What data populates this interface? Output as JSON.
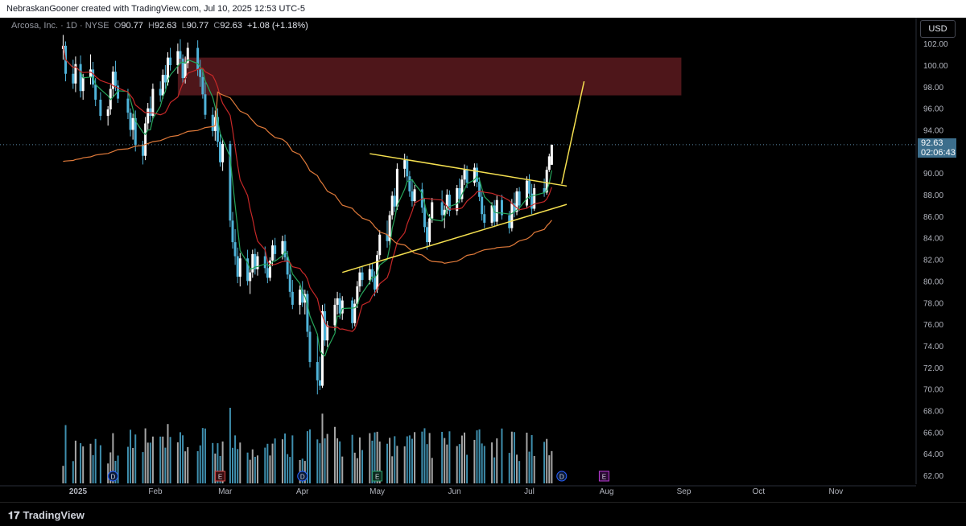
{
  "header": {
    "caption": "NebraskanGooner created with TradingView.com, Jul 10, 2025 12:53 UTC-5"
  },
  "legend": {
    "symbol": "Arcosa, Inc. · 1D · NYSE",
    "open_label": "O",
    "open": "90.77",
    "high_label": "H",
    "high": "92.63",
    "low_label": "L",
    "low": "90.77",
    "close_label": "C",
    "close": "92.63",
    "change": "+1.08 (+1.18%)"
  },
  "currency": "USD",
  "last_price": {
    "value": "92.63",
    "countdown": "02:06:43"
  },
  "footer": {
    "brand": "TradingView"
  },
  "colors": {
    "up": "#ffffff",
    "down": "#4fb3d9",
    "ma_fast": "#26a65b",
    "ma_mid": "#c62828",
    "ma_slow": "#e07a3a",
    "resistance_zone": "#5c1a1f",
    "trendline": "#f5e050"
  },
  "chart_data": {
    "type": "candlestick",
    "y_axis": {
      "ticks": [
        "102.00",
        "100.00",
        "98.00",
        "96.00",
        "94.00",
        "92.00",
        "90.00",
        "88.00",
        "86.00",
        "84.00",
        "82.00",
        "80.00",
        "78.00",
        "76.00",
        "74.00",
        "72.00",
        "70.00",
        "68.00",
        "66.00",
        "64.00",
        "62.00"
      ],
      "range": [
        61,
        104
      ]
    },
    "x_axis": {
      "ticks": [
        "2025",
        "Feb",
        "Mar",
        "Apr",
        "May",
        "Jun",
        "Jul",
        "Aug",
        "Sep",
        "Oct",
        "Nov"
      ]
    },
    "event_markers": [
      {
        "label": "D",
        "date": "2025-01-15",
        "kind": "dividend"
      },
      {
        "label": "E",
        "date": "2025-02-27",
        "kind": "earnings"
      },
      {
        "label": "D",
        "date": "2025-04-01",
        "kind": "dividend"
      },
      {
        "label": "E",
        "date": "2025-05-01",
        "kind": "earnings"
      },
      {
        "label": "D",
        "date": "2025-07-14",
        "kind": "dividend"
      },
      {
        "label": "E",
        "date": "2025-07-31",
        "kind": "earnings"
      }
    ],
    "resistance_zone": {
      "from_date": "2025-02-10",
      "to_date": "2025-08-31",
      "low": 97.2,
      "high": 100.7
    },
    "trendlines": [
      {
        "from": [
          "2025-04-28",
          91.8
        ],
        "to": [
          "2025-07-16",
          88.8
        ]
      },
      {
        "from": [
          "2025-04-17",
          80.8
        ],
        "to": [
          "2025-07-16",
          87.1
        ]
      }
    ],
    "projection": {
      "points": [
        [
          "2025-07-14",
          89.0
        ],
        [
          "2025-07-23",
          98.5
        ]
      ]
    },
    "candles": [
      [
        "2024-12-26",
        101.5,
        102.8,
        100.5,
        101.8
      ],
      [
        "2024-12-27",
        101.8,
        102.2,
        98.5,
        99.2
      ],
      [
        "2024-12-30",
        99.2,
        100.5,
        97.8,
        98.3
      ],
      [
        "2024-12-31",
        98.3,
        100.8,
        97.5,
        100.1
      ],
      [
        "2025-01-02",
        100.1,
        100.9,
        97.0,
        97.6
      ],
      [
        "2025-01-03",
        97.6,
        99.2,
        96.8,
        98.9
      ],
      [
        "2025-01-06",
        98.9,
        101.0,
        98.2,
        99.6
      ],
      [
        "2025-01-07",
        99.6,
        100.3,
        97.9,
        98.2
      ],
      [
        "2025-01-08",
        98.2,
        98.8,
        96.2,
        96.8
      ],
      [
        "2025-01-10",
        96.8,
        97.5,
        94.9,
        95.3
      ],
      [
        "2025-01-13",
        95.3,
        96.2,
        94.4,
        95.9
      ],
      [
        "2025-01-14",
        95.9,
        98.2,
        95.4,
        97.8
      ],
      [
        "2025-01-15",
        97.8,
        99.9,
        97.1,
        99.4
      ],
      [
        "2025-01-16",
        99.4,
        100.4,
        97.6,
        98.1
      ],
      [
        "2025-01-17",
        98.1,
        98.6,
        96.5,
        96.9
      ],
      [
        "2025-01-21",
        96.9,
        97.8,
        95.0,
        95.6
      ],
      [
        "2025-01-22",
        95.6,
        96.0,
        93.4,
        94.0
      ],
      [
        "2025-01-23",
        94.0,
        95.5,
        93.1,
        95.1
      ],
      [
        "2025-01-24",
        95.1,
        95.8,
        92.0,
        92.6
      ],
      [
        "2025-01-27",
        92.6,
        93.0,
        90.8,
        91.6
      ],
      [
        "2025-01-28",
        91.6,
        95.2,
        91.2,
        94.6
      ],
      [
        "2025-01-29",
        94.6,
        96.5,
        94.0,
        96.0
      ],
      [
        "2025-01-30",
        96.0,
        97.1,
        94.7,
        95.3
      ],
      [
        "2025-01-31",
        95.3,
        98.3,
        95.0,
        97.8
      ],
      [
        "2025-02-03",
        97.8,
        98.5,
        96.6,
        97.2
      ],
      [
        "2025-02-04",
        97.2,
        99.6,
        96.9,
        99.1
      ],
      [
        "2025-02-05",
        99.1,
        100.0,
        97.8,
        98.4
      ],
      [
        "2025-02-06",
        98.4,
        101.2,
        98.1,
        100.7
      ],
      [
        "2025-02-07",
        100.7,
        101.6,
        99.5,
        100.0
      ],
      [
        "2025-02-10",
        100.0,
        102.0,
        99.2,
        101.3
      ],
      [
        "2025-02-11",
        101.3,
        102.4,
        100.1,
        100.6
      ],
      [
        "2025-02-12",
        100.6,
        101.0,
        98.2,
        98.8
      ],
      [
        "2025-02-13",
        98.8,
        100.8,
        98.3,
        100.2
      ],
      [
        "2025-02-14",
        100.2,
        102.1,
        99.7,
        101.6
      ],
      [
        "2025-02-18",
        101.6,
        102.3,
        99.0,
        99.6
      ],
      [
        "2025-02-19",
        99.6,
        100.5,
        98.0,
        98.9
      ],
      [
        "2025-02-20",
        98.9,
        99.6,
        96.9,
        97.3
      ],
      [
        "2025-02-21",
        97.3,
        98.4,
        95.0,
        95.4
      ],
      [
        "2025-02-24",
        95.4,
        96.1,
        93.4,
        93.9
      ],
      [
        "2025-02-25",
        93.9,
        95.8,
        93.0,
        95.2
      ],
      [
        "2025-02-26",
        95.2,
        96.0,
        92.4,
        92.9
      ],
      [
        "2025-02-27",
        92.9,
        93.6,
        90.6,
        91.0
      ],
      [
        "2025-02-28",
        91.0,
        93.1,
        90.2,
        92.7
      ],
      [
        "2025-03-03",
        92.7,
        93.0,
        85.0,
        85.6
      ],
      [
        "2025-03-04",
        85.6,
        86.4,
        83.0,
        83.6
      ],
      [
        "2025-03-05",
        83.6,
        84.8,
        81.5,
        82.3
      ],
      [
        "2025-03-06",
        82.3,
        83.1,
        79.8,
        80.4
      ],
      [
        "2025-03-07",
        80.4,
        82.6,
        79.5,
        82.1
      ],
      [
        "2025-03-10",
        82.1,
        82.9,
        79.6,
        80.0
      ],
      [
        "2025-03-11",
        80.0,
        81.2,
        78.8,
        80.8
      ],
      [
        "2025-03-12",
        80.8,
        82.9,
        80.3,
        82.5
      ],
      [
        "2025-03-13",
        82.5,
        83.0,
        80.6,
        81.1
      ],
      [
        "2025-03-14",
        81.1,
        82.7,
        80.5,
        82.3
      ],
      [
        "2025-03-17",
        82.3,
        83.2,
        80.7,
        81.2
      ],
      [
        "2025-03-18",
        81.2,
        81.8,
        79.8,
        80.3
      ],
      [
        "2025-03-19",
        80.3,
        82.2,
        80.0,
        81.9
      ],
      [
        "2025-03-20",
        81.9,
        83.8,
        81.4,
        83.3
      ],
      [
        "2025-03-21",
        83.3,
        84.0,
        81.9,
        82.5
      ],
      [
        "2025-03-24",
        82.5,
        84.2,
        82.0,
        83.7
      ],
      [
        "2025-03-25",
        83.7,
        84.3,
        81.8,
        82.2
      ],
      [
        "2025-03-26",
        82.2,
        82.8,
        80.2,
        80.6
      ],
      [
        "2025-03-27",
        80.6,
        81.5,
        78.5,
        79.0
      ],
      [
        "2025-03-28",
        79.0,
        80.1,
        77.4,
        77.8
      ],
      [
        "2025-03-31",
        77.8,
        79.6,
        76.9,
        79.2
      ],
      [
        "2025-04-01",
        79.2,
        80.0,
        77.6,
        78.0
      ],
      [
        "2025-04-02",
        78.0,
        79.2,
        76.9,
        78.8
      ],
      [
        "2025-04-03",
        78.8,
        79.1,
        74.8,
        75.3
      ],
      [
        "2025-04-04",
        75.3,
        75.9,
        72.0,
        72.5
      ],
      [
        "2025-04-07",
        72.5,
        74.9,
        69.5,
        70.8
      ],
      [
        "2025-04-08",
        70.8,
        73.0,
        69.9,
        70.3
      ],
      [
        "2025-04-09",
        70.3,
        77.8,
        70.1,
        77.2
      ],
      [
        "2025-04-10",
        77.2,
        77.9,
        74.0,
        74.5
      ],
      [
        "2025-04-11",
        74.5,
        76.3,
        73.9,
        75.9
      ],
      [
        "2025-04-14",
        75.9,
        78.4,
        75.4,
        77.8
      ],
      [
        "2025-04-15",
        77.8,
        79.0,
        76.9,
        78.4
      ],
      [
        "2025-04-16",
        78.4,
        78.9,
        76.5,
        77.0
      ],
      [
        "2025-04-17",
        77.0,
        78.6,
        76.4,
        78.2
      ],
      [
        "2025-04-21",
        78.2,
        78.5,
        75.6,
        76.1
      ],
      [
        "2025-04-22",
        76.1,
        78.3,
        75.8,
        77.9
      ],
      [
        "2025-04-23",
        77.9,
        80.0,
        77.5,
        79.5
      ],
      [
        "2025-04-24",
        79.5,
        81.2,
        79.0,
        80.8
      ],
      [
        "2025-04-25",
        80.8,
        81.3,
        79.5,
        80.1
      ],
      [
        "2025-04-28",
        80.1,
        81.5,
        79.7,
        81.1
      ],
      [
        "2025-04-29",
        81.1,
        81.6,
        79.9,
        80.4
      ],
      [
        "2025-04-30",
        80.4,
        80.9,
        78.6,
        79.2
      ],
      [
        "2025-05-01",
        79.2,
        82.8,
        78.9,
        82.4
      ],
      [
        "2025-05-02",
        82.4,
        84.7,
        82.0,
        84.3
      ],
      [
        "2025-05-05",
        84.3,
        85.6,
        83.1,
        83.7
      ],
      [
        "2025-05-06",
        83.7,
        86.5,
        83.3,
        86.1
      ],
      [
        "2025-05-07",
        86.1,
        88.3,
        85.7,
        87.9
      ],
      [
        "2025-05-08",
        87.9,
        88.6,
        86.4,
        86.9
      ],
      [
        "2025-05-09",
        86.9,
        90.9,
        86.6,
        90.4
      ],
      [
        "2025-05-12",
        90.4,
        91.8,
        89.6,
        91.2
      ],
      [
        "2025-05-13",
        91.2,
        91.6,
        89.2,
        89.7
      ],
      [
        "2025-05-14",
        89.7,
        90.2,
        87.8,
        88.3
      ],
      [
        "2025-05-15",
        88.3,
        89.4,
        86.9,
        87.4
      ],
      [
        "2025-05-16",
        87.4,
        88.9,
        87.0,
        88.5
      ],
      [
        "2025-05-19",
        88.5,
        89.1,
        86.3,
        86.8
      ],
      [
        "2025-05-20",
        86.8,
        87.6,
        84.5,
        85.0
      ],
      [
        "2025-05-21",
        85.0,
        85.5,
        82.9,
        83.6
      ],
      [
        "2025-05-22",
        83.6,
        86.2,
        83.3,
        85.8
      ],
      [
        "2025-05-23",
        85.8,
        87.7,
        85.4,
        87.3
      ],
      [
        "2025-05-27",
        87.3,
        88.4,
        85.6,
        86.1
      ],
      [
        "2025-05-28",
        86.1,
        87.0,
        84.9,
        86.6
      ],
      [
        "2025-05-29",
        86.6,
        88.5,
        86.2,
        88.0
      ],
      [
        "2025-05-30",
        88.0,
        88.4,
        86.0,
        86.5
      ],
      [
        "2025-06-02",
        86.5,
        88.9,
        86.1,
        88.6
      ],
      [
        "2025-06-03",
        88.6,
        89.5,
        87.2,
        87.6
      ],
      [
        "2025-06-04",
        87.6,
        89.8,
        87.3,
        89.4
      ],
      [
        "2025-06-05",
        89.4,
        90.8,
        88.9,
        90.3
      ],
      [
        "2025-06-06",
        90.3,
        90.7,
        88.6,
        89.1
      ],
      [
        "2025-06-09",
        89.1,
        90.9,
        88.8,
        90.5
      ],
      [
        "2025-06-10",
        90.5,
        90.9,
        88.7,
        89.2
      ],
      [
        "2025-06-11",
        89.2,
        89.6,
        87.4,
        87.8
      ],
      [
        "2025-06-12",
        87.8,
        88.3,
        85.6,
        86.2
      ],
      [
        "2025-06-13",
        86.2,
        87.0,
        84.9,
        85.4
      ],
      [
        "2025-06-16",
        85.4,
        87.3,
        85.1,
        87.0
      ],
      [
        "2025-06-17",
        87.0,
        87.5,
        85.0,
        85.5
      ],
      [
        "2025-06-18",
        85.5,
        87.9,
        85.2,
        87.5
      ],
      [
        "2025-06-20",
        87.5,
        88.0,
        85.7,
        86.1
      ],
      [
        "2025-06-23",
        86.1,
        86.5,
        84.4,
        84.9
      ],
      [
        "2025-06-24",
        84.9,
        87.6,
        84.6,
        87.2
      ],
      [
        "2025-06-25",
        87.2,
        88.2,
        85.9,
        86.4
      ],
      [
        "2025-06-26",
        86.4,
        88.6,
        86.1,
        88.3
      ],
      [
        "2025-06-27",
        88.3,
        88.7,
        86.5,
        87.0
      ],
      [
        "2025-06-30",
        87.0,
        89.7,
        86.8,
        89.3
      ],
      [
        "2025-07-01",
        89.3,
        89.9,
        87.6,
        88.1
      ],
      [
        "2025-07-02",
        88.1,
        89.0,
        86.2,
        86.7
      ],
      [
        "2025-07-03",
        86.7,
        89.0,
        86.5,
        88.6
      ],
      [
        "2025-07-07",
        88.6,
        89.5,
        87.8,
        88.2
      ],
      [
        "2025-07-08",
        88.2,
        90.6,
        88.0,
        90.3
      ],
      [
        "2025-07-09",
        90.3,
        91.8,
        90.1,
        91.55
      ],
      [
        "2025-07-10",
        90.77,
        92.63,
        90.77,
        92.63
      ]
    ],
    "volume_max": 100
  }
}
